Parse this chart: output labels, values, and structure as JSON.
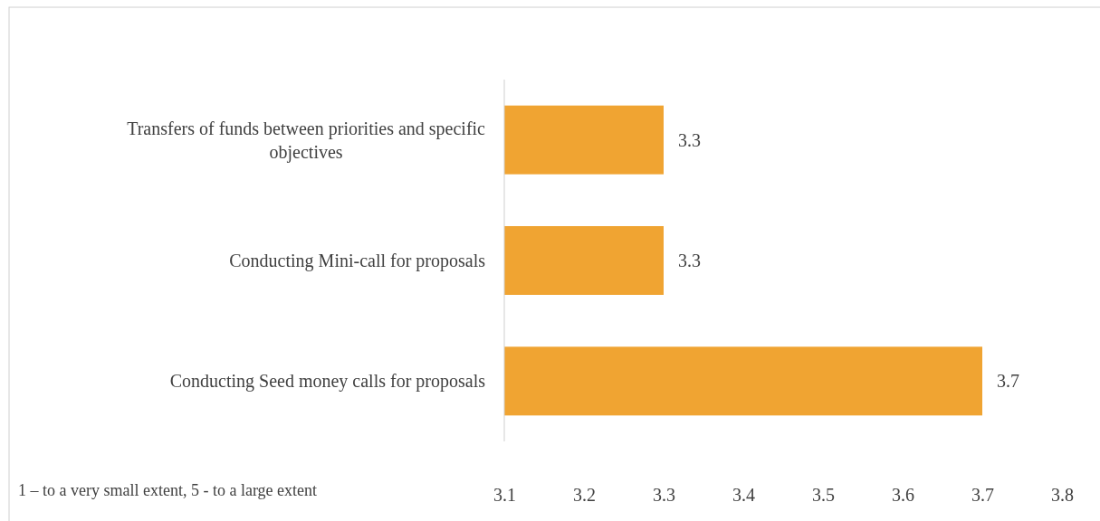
{
  "chart_data": {
    "type": "bar",
    "orientation": "horizontal",
    "categories": [
      "Transfers of funds between priorities and specific objectives",
      "Conducting Mini-call for proposals",
      "Conducting Seed money calls for proposals"
    ],
    "values": [
      3.3,
      3.3,
      3.7
    ],
    "color": "#f0a432",
    "xlim": [
      3.1,
      3.8
    ],
    "xticks": [
      3.1,
      3.2,
      3.3,
      3.4,
      3.5,
      3.6,
      3.7,
      3.8
    ],
    "data_labels": true,
    "grid": false,
    "annotations": [
      "1 – to a very small extent, 5 - to a large extent"
    ]
  }
}
